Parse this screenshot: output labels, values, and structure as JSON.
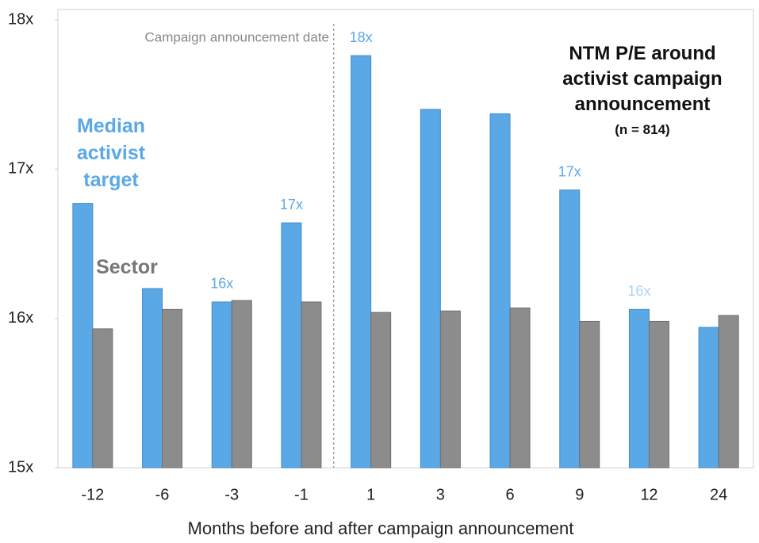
{
  "chart_data": {
    "type": "bar",
    "title": "NTM P/E around activist campaign announcement",
    "subtitle": "(n = 814)",
    "x_label": "Months before and after campaign announcement",
    "annotation": "Campaign announcement date",
    "categories": [
      "-12",
      "-6",
      "-3",
      "-1",
      "1",
      "3",
      "6",
      "9",
      "12",
      "24"
    ],
    "series": [
      {
        "name": "Median activist target",
        "color": "#5aa9e6",
        "values": [
          16.77,
          16.2,
          16.11,
          16.64,
          17.76,
          17.4,
          17.37,
          16.86,
          16.06,
          15.94
        ],
        "value_labels": [
          null,
          null,
          "16x",
          "17x",
          "18x",
          null,
          null,
          "17x",
          "16x",
          null
        ]
      },
      {
        "name": "Sector",
        "color": "#8c8c8c",
        "values": [
          15.93,
          16.06,
          16.12,
          16.11,
          16.04,
          16.05,
          16.07,
          15.98,
          15.98,
          16.02
        ]
      }
    ],
    "ylim": [
      15,
      18
    ],
    "yticks": [
      {
        "value": 15,
        "label": "15x"
      },
      {
        "value": 16,
        "label": "16x"
      },
      {
        "value": 17,
        "label": "17x"
      },
      {
        "value": 18,
        "label": "18x"
      }
    ],
    "grid": false
  }
}
